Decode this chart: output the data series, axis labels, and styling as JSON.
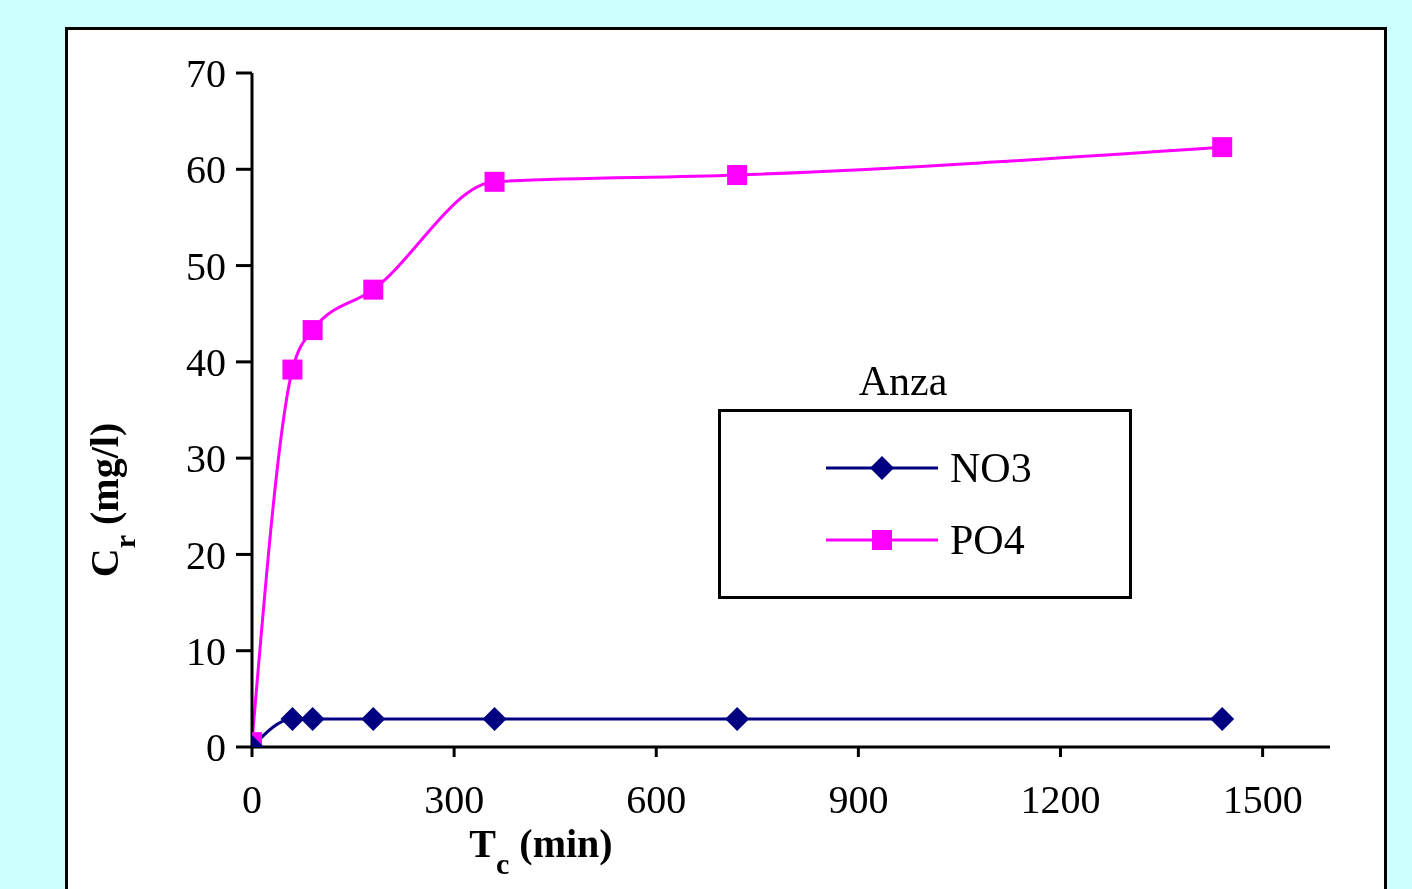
{
  "chart_data": {
    "type": "line",
    "xlabel": "T$_{c}$ (min)",
    "ylabel": "C$_{r}$  (mg/l)",
    "legend_title": "Anza",
    "legend": "right",
    "xlim": [
      0,
      1600
    ],
    "xticks": [
      0,
      300,
      600,
      900,
      1200,
      1500
    ],
    "ylim": [
      0,
      70
    ],
    "yticks": [
      0,
      10,
      20,
      30,
      40,
      50,
      60,
      70
    ],
    "series": [
      {
        "name": "NO3",
        "color": "#000080",
        "marker": "diamond",
        "x": [
          0,
          60,
          90,
          180,
          360,
          720,
          1440
        ],
        "values": [
          0,
          2.9,
          2.9,
          2.9,
          2.9,
          2.9,
          2.9
        ]
      },
      {
        "name": "PO4",
        "color": "#ff00ff",
        "marker": "square",
        "x": [
          0,
          60,
          90,
          180,
          360,
          720,
          1440
        ],
        "values": [
          0.5,
          39.2,
          43.3,
          47.5,
          58.7,
          59.4,
          62.3
        ]
      }
    ]
  }
}
